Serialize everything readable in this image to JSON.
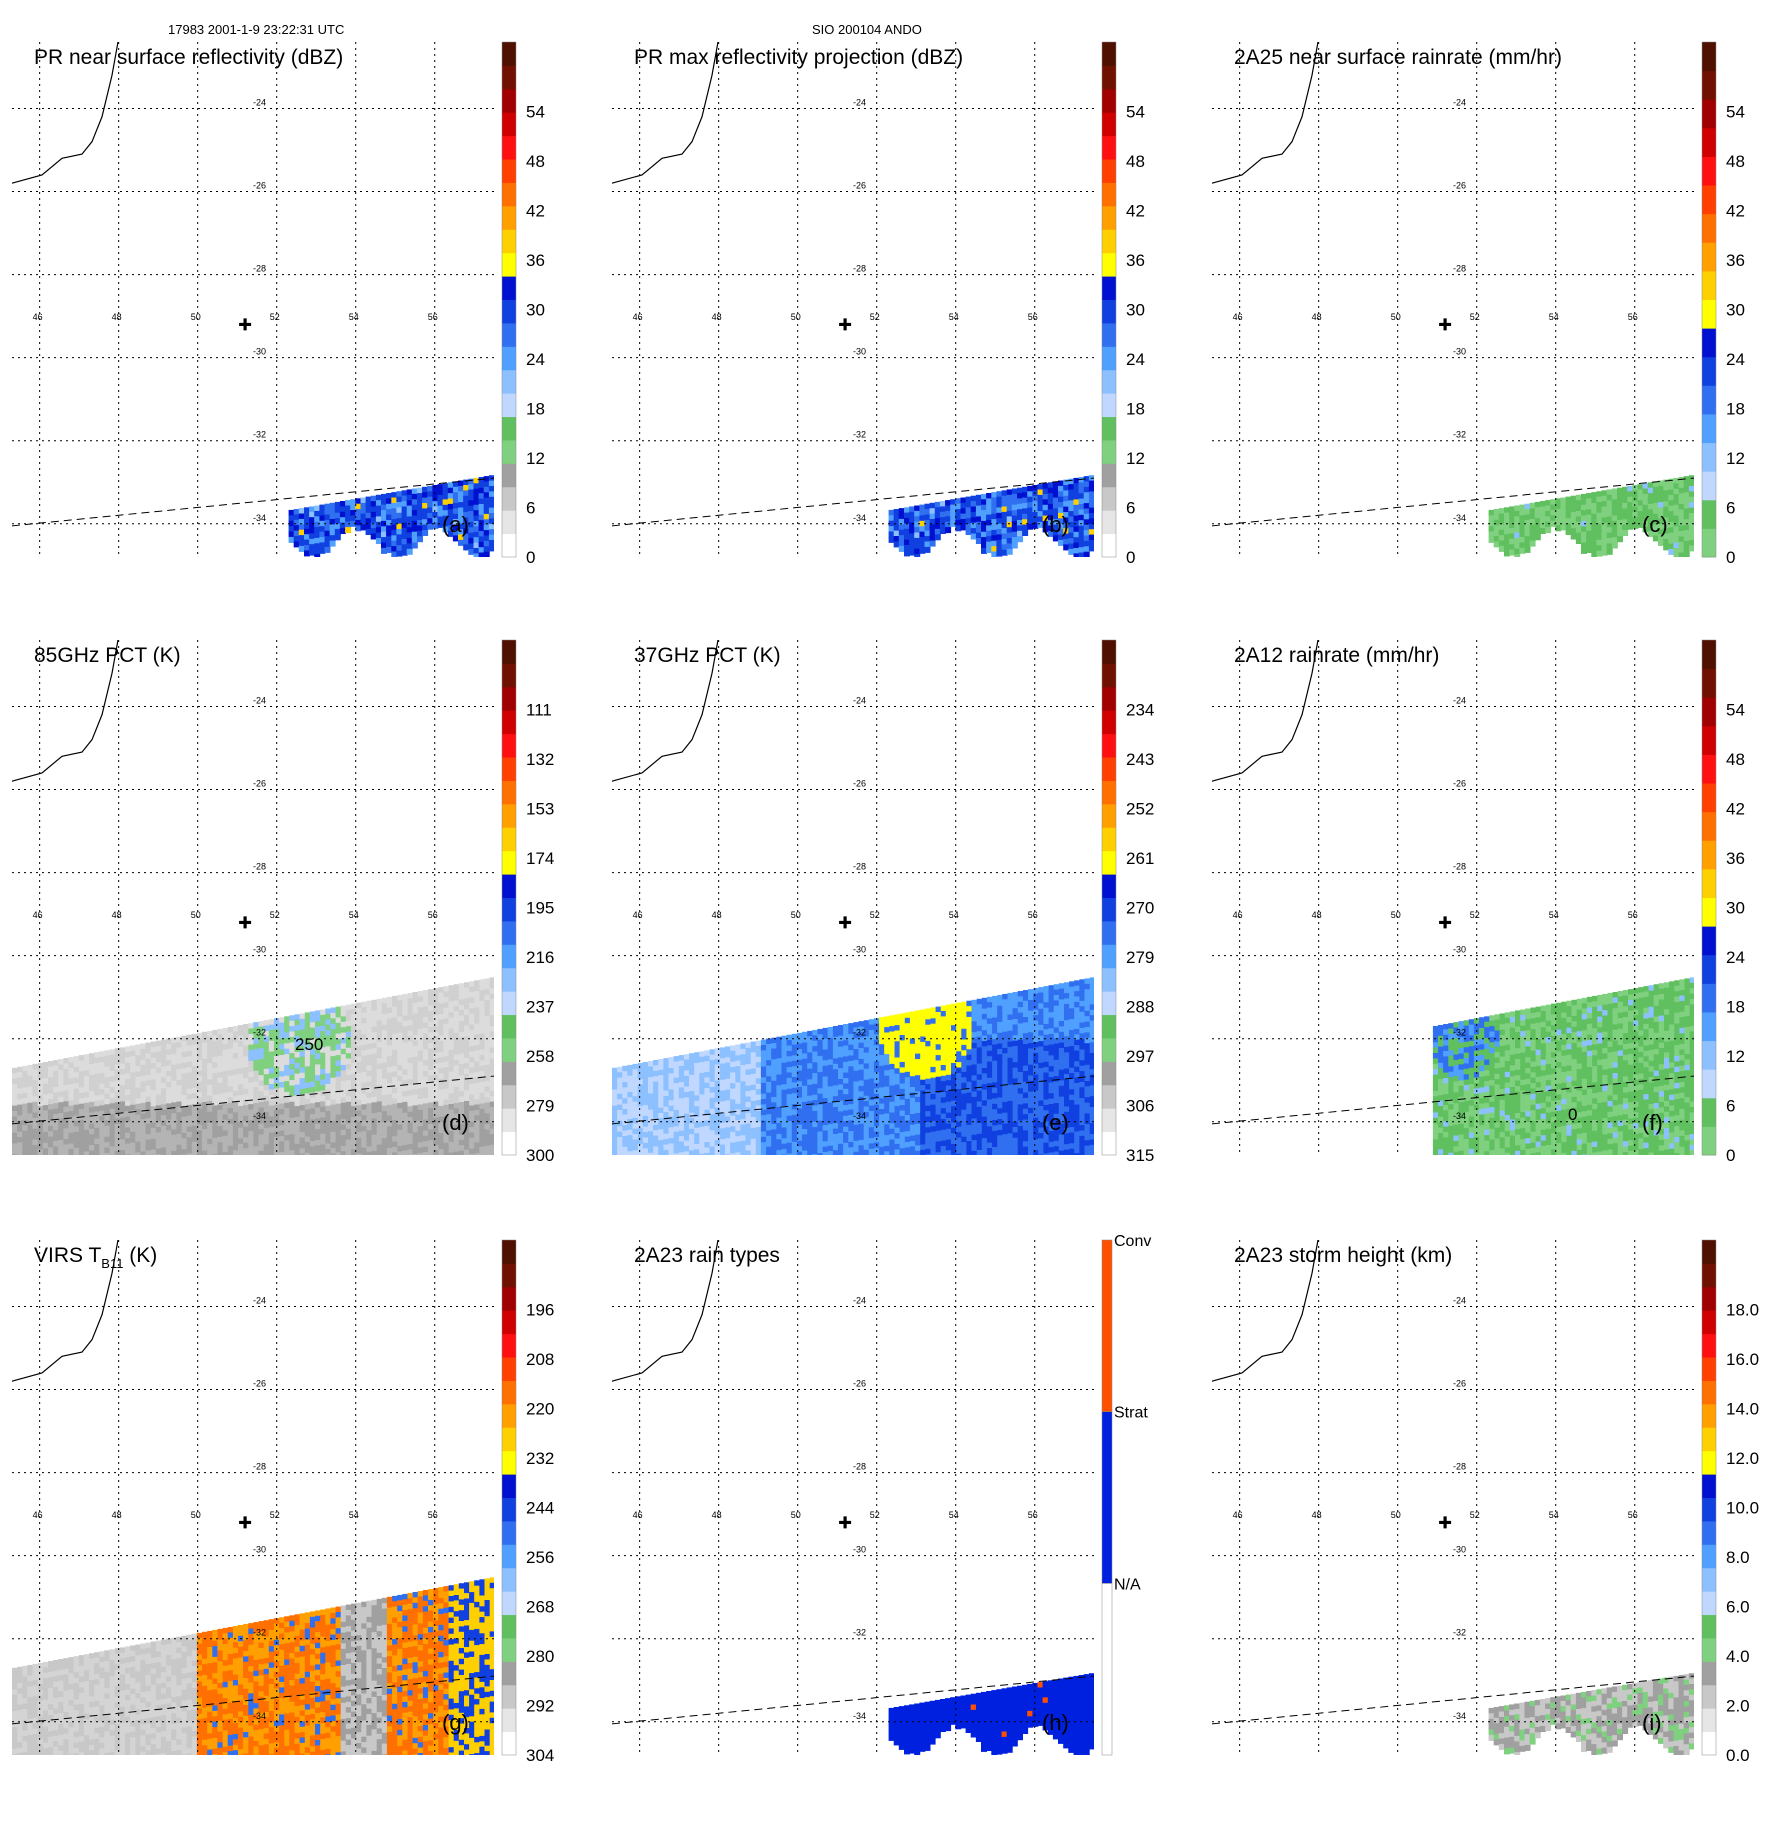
{
  "header": {
    "left": "17983 2001-1-9 23:22:31 UTC",
    "center": "SIO 200104 ANDO"
  },
  "map": {
    "lon_ticks": [
      46,
      48,
      50,
      52,
      54,
      56
    ],
    "lat_ticks": [
      -24,
      -26,
      -28,
      -30,
      -32,
      -34
    ],
    "lon_range": [
      45.3,
      57.5
    ],
    "lat_range": [
      -34.8,
      -22.4
    ],
    "center_marker": {
      "lon": 51.2,
      "lat": -29.2
    }
  },
  "chart_data": [
    {
      "type": "heatmap",
      "id": "a",
      "label": "(a)",
      "title": "PR near surface reflectivity (dBZ)",
      "colorbar": {
        "ticks": [
          "0",
          "6",
          "12",
          "18",
          "24",
          "30",
          "36",
          "42",
          "48",
          "54"
        ],
        "colors": [
          "#ffffff",
          "#e6e6e6",
          "#c8c8c8",
          "#a0a0a0",
          "#7fd07f",
          "#60c060",
          "#c0d8ff",
          "#8cc0ff",
          "#50a0ff",
          "#3070f0",
          "#1040e0",
          "#0010d0",
          "#ffff00",
          "#ffd000",
          "#ffa000",
          "#ff7000",
          "#ff4000",
          "#ff1010",
          "#d00000",
          "#a00000",
          "#701000",
          "#501000"
        ]
      },
      "field": "pr_swath_blue"
    },
    {
      "type": "heatmap",
      "id": "b",
      "label": "(b)",
      "title": "PR max reflectivity projection (dBZ)",
      "colorbar": {
        "ticks": [
          "0",
          "6",
          "12",
          "18",
          "24",
          "30",
          "36",
          "42",
          "48",
          "54"
        ],
        "colors": [
          "#ffffff",
          "#e6e6e6",
          "#c8c8c8",
          "#a0a0a0",
          "#7fd07f",
          "#60c060",
          "#c0d8ff",
          "#8cc0ff",
          "#50a0ff",
          "#3070f0",
          "#1040e0",
          "#0010d0",
          "#ffff00",
          "#ffd000",
          "#ffa000",
          "#ff7000",
          "#ff4000",
          "#ff1010",
          "#d00000",
          "#a00000",
          "#701000",
          "#501000"
        ]
      },
      "field": "pr_swath_blue"
    },
    {
      "type": "heatmap",
      "id": "c",
      "label": "(c)",
      "title": "2A25 near surface rainrate (mm/hr)",
      "colorbar": {
        "ticks": [
          "0",
          "6",
          "12",
          "18",
          "24",
          "30",
          "36",
          "42",
          "48",
          "54"
        ],
        "colors": [
          "#7fd07f",
          "#60c060",
          "#c0d8ff",
          "#8cc0ff",
          "#50a0ff",
          "#3070f0",
          "#1040e0",
          "#0010d0",
          "#ffff00",
          "#ffd000",
          "#ffa000",
          "#ff7000",
          "#ff4000",
          "#ff1010",
          "#d00000",
          "#a00000",
          "#701000",
          "#501000"
        ]
      },
      "field": "pr_swath_green"
    },
    {
      "type": "heatmap",
      "id": "d",
      "label": "(d)",
      "title": "85GHz PCT (K)",
      "contour_label": "250",
      "colorbar": {
        "ticks": [
          "300",
          "279",
          "258",
          "237",
          "216",
          "195",
          "174",
          "153",
          "132",
          "111"
        ],
        "colors": [
          "#ffffff",
          "#e6e6e6",
          "#c8c8c8",
          "#a0a0a0",
          "#7fd07f",
          "#60c060",
          "#c0d8ff",
          "#8cc0ff",
          "#50a0ff",
          "#3070f0",
          "#1040e0",
          "#0010d0",
          "#ffff00",
          "#ffd000",
          "#ffa000",
          "#ff7000",
          "#ff4000",
          "#ff1010",
          "#d00000",
          "#a00000",
          "#701000",
          "#501000"
        ]
      },
      "field": "tmi_gray"
    },
    {
      "type": "heatmap",
      "id": "e",
      "label": "(e)",
      "title": "37GHz PCT (K)",
      "colorbar": {
        "ticks": [
          "315",
          "306",
          "297",
          "288",
          "279",
          "270",
          "261",
          "252",
          "243",
          "234"
        ],
        "colors": [
          "#ffffff",
          "#e6e6e6",
          "#c8c8c8",
          "#a0a0a0",
          "#7fd07f",
          "#60c060",
          "#c0d8ff",
          "#8cc0ff",
          "#50a0ff",
          "#3070f0",
          "#1040e0",
          "#0010d0",
          "#ffff00",
          "#ffd000",
          "#ffa000",
          "#ff7000",
          "#ff4000",
          "#ff1010",
          "#d00000",
          "#a00000",
          "#701000",
          "#501000"
        ]
      },
      "field": "tmi_blue"
    },
    {
      "type": "heatmap",
      "id": "f",
      "label": "(f)",
      "title": "2A12 rainrate (mm/hr)",
      "contour_label": "0",
      "colorbar": {
        "ticks": [
          "0",
          "6",
          "12",
          "18",
          "24",
          "30",
          "36",
          "42",
          "48",
          "54"
        ],
        "colors": [
          "#7fd07f",
          "#60c060",
          "#c0d8ff",
          "#8cc0ff",
          "#50a0ff",
          "#3070f0",
          "#1040e0",
          "#0010d0",
          "#ffff00",
          "#ffd000",
          "#ffa000",
          "#ff7000",
          "#ff4000",
          "#ff1010",
          "#d00000",
          "#a00000",
          "#701000",
          "#501000"
        ]
      },
      "field": "tmi_green"
    },
    {
      "type": "heatmap",
      "id": "g",
      "label": "(g)",
      "title": "VIRS T",
      "title_sub": "B11",
      "title_suffix": " (K)",
      "colorbar": {
        "ticks": [
          "304",
          "292",
          "280",
          "268",
          "256",
          "244",
          "232",
          "220",
          "208",
          "196"
        ],
        "colors": [
          "#ffffff",
          "#e6e6e6",
          "#c8c8c8",
          "#a0a0a0",
          "#7fd07f",
          "#60c060",
          "#c0d8ff",
          "#8cc0ff",
          "#50a0ff",
          "#3070f0",
          "#1040e0",
          "#0010d0",
          "#ffff00",
          "#ffd000",
          "#ffa000",
          "#ff7000",
          "#ff4000",
          "#ff1010",
          "#d00000",
          "#a00000",
          "#701000",
          "#501000"
        ]
      },
      "field": "virs"
    },
    {
      "type": "heatmap",
      "id": "h",
      "label": "(h)",
      "title": "2A23 rain types",
      "colorbar": {
        "categorical": true,
        "ticks": [
          "N/A",
          "Strat",
          "Conv"
        ],
        "colors": [
          "#ffffff",
          "#0020e0",
          "#ff5000"
        ]
      },
      "field": "pr_swath_type"
    },
    {
      "type": "heatmap",
      "id": "i",
      "label": "(i)",
      "title": "2A23 storm height (km)",
      "colorbar": {
        "ticks": [
          "0.0",
          "2.0",
          "4.0",
          "6.0",
          "8.0",
          "10.0",
          "12.0",
          "14.0",
          "16.0",
          "18.0"
        ],
        "colors": [
          "#ffffff",
          "#e6e6e6",
          "#c8c8c8",
          "#a0a0a0",
          "#7fd07f",
          "#60c060",
          "#c0d8ff",
          "#8cc0ff",
          "#50a0ff",
          "#3070f0",
          "#1040e0",
          "#0010d0",
          "#ffff00",
          "#ffd000",
          "#ffa000",
          "#ff7000",
          "#ff4000",
          "#ff1010",
          "#d00000",
          "#a00000",
          "#701000",
          "#501000"
        ]
      },
      "field": "pr_swath_height"
    }
  ]
}
